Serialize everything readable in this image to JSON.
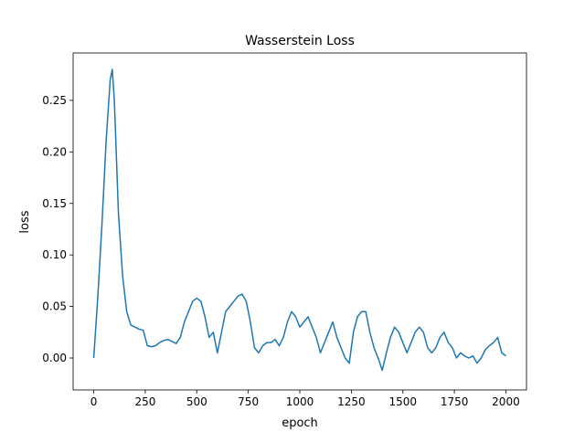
{
  "chart_data": {
    "type": "line",
    "title": "Wasserstein Loss",
    "x_label": "epoch",
    "y_label": "loss",
    "x": [
      0,
      20,
      40,
      60,
      80,
      90,
      100,
      120,
      140,
      160,
      180,
      200,
      220,
      240,
      260,
      280,
      300,
      320,
      340,
      360,
      380,
      400,
      420,
      440,
      460,
      480,
      500,
      520,
      540,
      560,
      580,
      600,
      620,
      640,
      660,
      680,
      700,
      720,
      740,
      760,
      780,
      800,
      820,
      840,
      860,
      880,
      900,
      920,
      940,
      960,
      980,
      1000,
      1020,
      1040,
      1060,
      1080,
      1100,
      1120,
      1140,
      1160,
      1180,
      1200,
      1220,
      1240,
      1260,
      1280,
      1300,
      1320,
      1340,
      1360,
      1380,
      1400,
      1420,
      1440,
      1460,
      1480,
      1500,
      1520,
      1540,
      1560,
      1580,
      1600,
      1620,
      1640,
      1660,
      1680,
      1700,
      1720,
      1740,
      1760,
      1780,
      1800,
      1820,
      1840,
      1860,
      1880,
      1900,
      1920,
      1940,
      1960,
      1980,
      2000
    ],
    "series": [
      {
        "name": "loss",
        "color": "#1f77b4",
        "values": [
          0.0,
          0.06,
          0.13,
          0.21,
          0.27,
          0.28,
          0.25,
          0.14,
          0.08,
          0.045,
          0.032,
          0.03,
          0.028,
          0.027,
          0.012,
          0.011,
          0.012,
          0.015,
          0.017,
          0.018,
          0.016,
          0.014,
          0.02,
          0.035,
          0.045,
          0.055,
          0.058,
          0.055,
          0.04,
          0.02,
          0.025,
          0.005,
          0.025,
          0.045,
          0.05,
          0.055,
          0.06,
          0.062,
          0.055,
          0.035,
          0.01,
          0.005,
          0.012,
          0.015,
          0.015,
          0.018,
          0.012,
          0.02,
          0.035,
          0.045,
          0.04,
          0.03,
          0.035,
          0.04,
          0.03,
          0.02,
          0.005,
          0.015,
          0.025,
          0.035,
          0.02,
          0.01,
          0.0,
          -0.005,
          0.025,
          0.04,
          0.045,
          0.045,
          0.025,
          0.01,
          0.0,
          -0.012,
          0.005,
          0.02,
          0.03,
          0.025,
          0.015,
          0.005,
          0.015,
          0.025,
          0.03,
          0.025,
          0.01,
          0.005,
          0.01,
          0.02,
          0.025,
          0.015,
          0.01,
          0.0,
          0.005,
          0.002,
          0.0,
          0.002,
          -0.005,
          0.0,
          0.008,
          0.012,
          0.015,
          0.02,
          0.005,
          0.002
        ]
      }
    ],
    "xlim": [
      -100,
      2100
    ],
    "ylim": [
      -0.031,
      0.296
    ],
    "xticks": [
      0,
      250,
      500,
      750,
      1000,
      1250,
      1500,
      1750,
      2000
    ],
    "yticks": [
      {
        "value": 0,
        "label": "0.00"
      },
      {
        "value": 0.05,
        "label": "0.05"
      },
      {
        "value": 0.1,
        "label": "0.10"
      },
      {
        "value": 0.15,
        "label": "0.15"
      },
      {
        "value": 0.2,
        "label": "0.20"
      },
      {
        "value": 0.25,
        "label": "0.25"
      }
    ]
  }
}
